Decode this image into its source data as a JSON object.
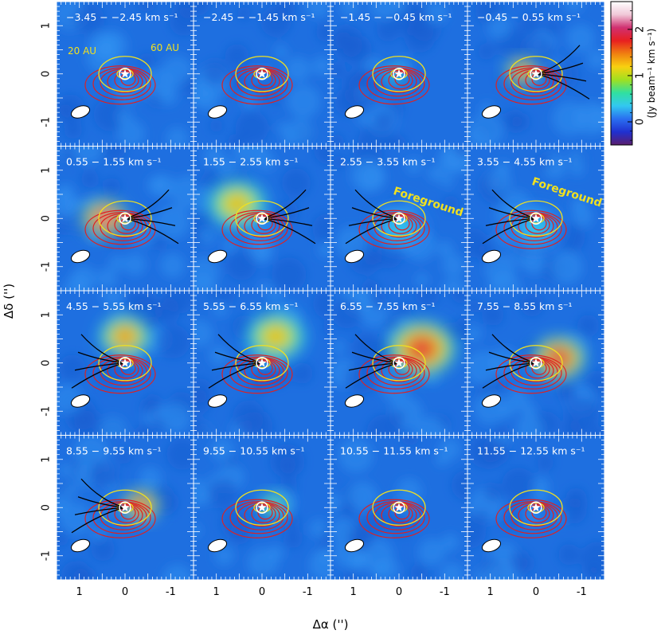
{
  "chart_data": {
    "type": "heatmap",
    "layout": {
      "rows": 4,
      "cols": 4
    },
    "xlabel": "Δα ('')",
    "ylabel": "Δδ ('')",
    "x_ticks": [
      1,
      0,
      -1
    ],
    "y_ticks": [
      1,
      0,
      -1
    ],
    "xlim": [
      1.5,
      -1.5
    ],
    "ylim": [
      -1.5,
      1.5
    ],
    "colorbar": {
      "label": "(Jy beam⁻¹ km s⁻¹)",
      "ticks": [
        0,
        1,
        2
      ],
      "range": [
        -0.5,
        2.6
      ],
      "colors": [
        "#5a1e6e",
        "#2030d0",
        "#2a6ff0",
        "#32c8f0",
        "#30e0a0",
        "#a0e020",
        "#f8d010",
        "#f08010",
        "#e82020",
        "#d03070",
        "#f0c8d8",
        "#ffffff"
      ]
    },
    "orbit_labels": [
      "20 AU",
      "60 AU"
    ],
    "foreground_label": "Foreground",
    "panels": [
      {
        "label": "−3.45 − −2.45 km s⁻¹",
        "emission": [
          [
            -0.05,
            0.0,
            0.08,
            0.3
          ]
        ],
        "foreground": false
      },
      {
        "label": "−2.45 − −1.45 km s⁻¹",
        "emission": [
          [
            0.05,
            0.0,
            0.1,
            0.3
          ]
        ],
        "foreground": false
      },
      {
        "label": "−1.45 − −0.45 km s⁻¹",
        "emission": [
          [
            0.1,
            0.0,
            0.15,
            0.7
          ]
        ],
        "foreground": false
      },
      {
        "label": "−0.45 − 0.55 km s⁻¹",
        "emission": [
          [
            0.3,
            0.05,
            0.22,
            1.8
          ]
        ],
        "foreground": false
      },
      {
        "label": "0.55 − 1.55 km s⁻¹",
        "emission": [
          [
            0.45,
            0.0,
            0.3,
            2.2
          ]
        ],
        "foreground": false
      },
      {
        "label": "1.55 − 2.55 km s⁻¹",
        "emission": [
          [
            0.55,
            0.3,
            0.4,
            1.3
          ]
        ],
        "foreground": false
      },
      {
        "label": "2.55 − 3.55 km s⁻¹",
        "emission": [
          [
            0.0,
            -0.2,
            0.35,
            0.4
          ]
        ],
        "foreground": true
      },
      {
        "label": "3.55 − 4.55 km s⁻¹",
        "emission": [
          [
            0.0,
            -0.2,
            0.35,
            0.4
          ]
        ],
        "foreground": true
      },
      {
        "label": "4.55 − 5.55 km s⁻¹",
        "emission": [
          [
            0.0,
            0.55,
            0.35,
            1.5
          ]
        ],
        "foreground": false
      },
      {
        "label": "5.55 − 6.55 km s⁻¹",
        "emission": [
          [
            -0.3,
            0.55,
            0.4,
            1.3
          ]
        ],
        "foreground": false
      },
      {
        "label": "6.55 − 7.55 km s⁻¹",
        "emission": [
          [
            -0.5,
            0.3,
            0.45,
            1.9
          ]
        ],
        "foreground": false
      },
      {
        "label": "7.55 − 8.55 km s⁻¹",
        "emission": [
          [
            -0.5,
            0.1,
            0.35,
            2.0
          ]
        ],
        "foreground": false
      },
      {
        "label": "8.55 − 9.55 km s⁻¹",
        "emission": [
          [
            -0.35,
            0.05,
            0.25,
            1.9
          ]
        ],
        "foreground": false
      },
      {
        "label": "9.55 − 10.55 km s⁻¹",
        "emission": [
          [
            -0.25,
            0.05,
            0.2,
            0.9
          ]
        ],
        "foreground": false
      },
      {
        "label": "10.55 − 11.55 km s⁻¹",
        "emission": [
          [
            -0.15,
            0.0,
            0.12,
            0.3
          ]
        ],
        "foreground": false
      },
      {
        "label": "11.55 − 12.55 km s⁻¹",
        "emission": [],
        "foreground": false
      }
    ]
  }
}
